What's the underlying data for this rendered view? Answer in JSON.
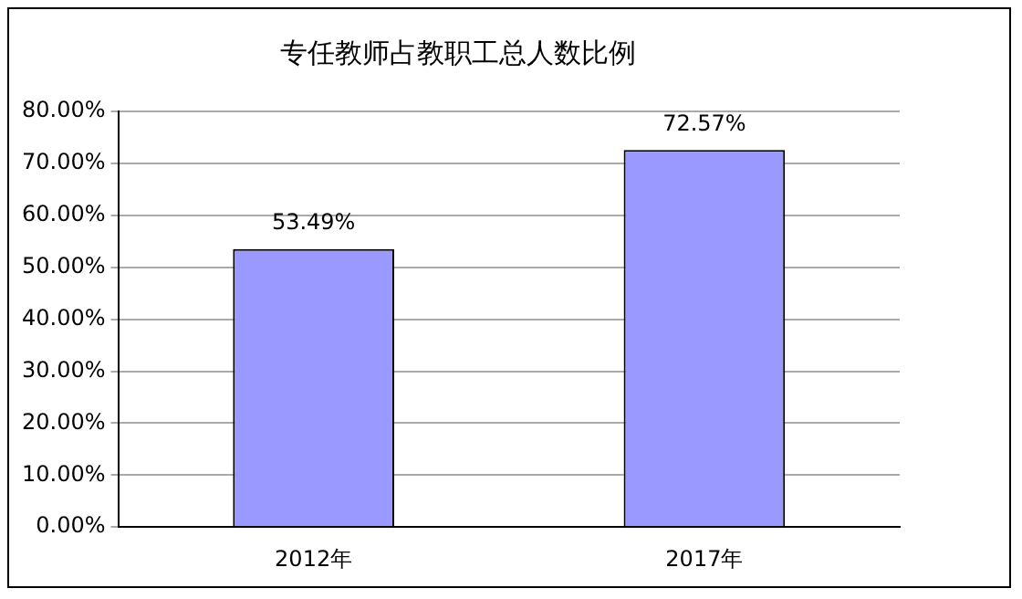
{
  "chart_data": {
    "type": "bar",
    "title": "专任教师占教职工总人数比例",
    "categories": [
      "2012年",
      "2017年"
    ],
    "values": [
      53.49,
      72.57
    ],
    "value_labels": [
      "53.49%",
      "72.57%"
    ],
    "color": "#9999ff",
    "ylim": [
      0,
      80
    ],
    "yticks": [
      {
        "value": 0,
        "label": "0.00%"
      },
      {
        "value": 10,
        "label": "10.00%"
      },
      {
        "value": 20,
        "label": "20.00%"
      },
      {
        "value": 30,
        "label": "30.00%"
      },
      {
        "value": 40,
        "label": "40.00%"
      },
      {
        "value": 50,
        "label": "50.00%"
      },
      {
        "value": 60,
        "label": "60.00%"
      },
      {
        "value": 70,
        "label": "70.00%"
      },
      {
        "value": 80,
        "label": "80.00%"
      }
    ],
    "grid": "y"
  }
}
